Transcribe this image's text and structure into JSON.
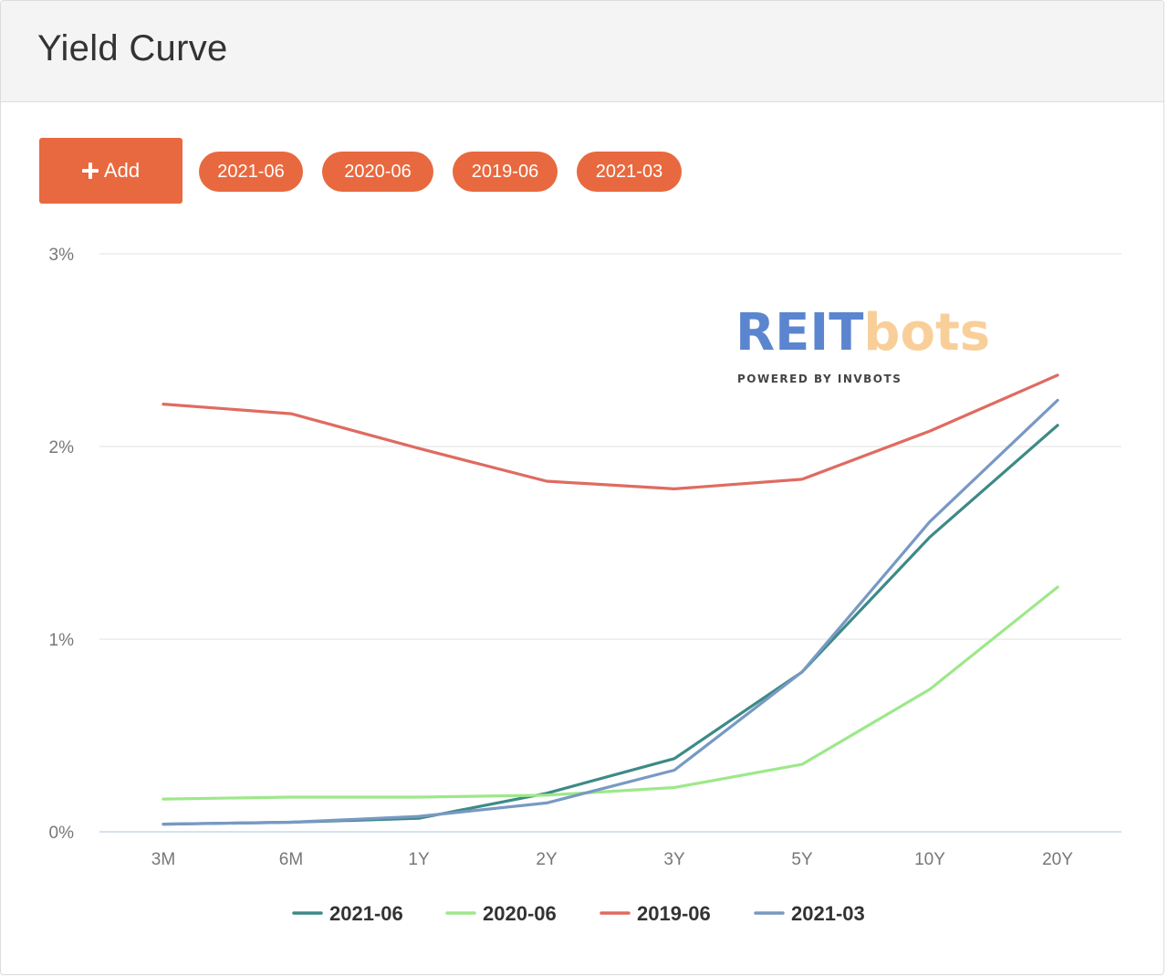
{
  "header": {
    "title": "Yield Curve"
  },
  "toolbar": {
    "add_label": "Add",
    "tags": [
      "2021-06",
      "2020-06",
      "2019-06",
      "2021-03"
    ]
  },
  "watermark": {
    "brand_main": "REIT",
    "brand_accent": "bots",
    "tagline": "POWERED BY INVBOTS"
  },
  "colors": {
    "accent": "#e8693f",
    "grid": "#e2e2e2",
    "axis": "#ccd6eb"
  },
  "chart_data": {
    "type": "line",
    "title": "",
    "xlabel": "",
    "ylabel": "",
    "categories": [
      "3M",
      "6M",
      "1Y",
      "2Y",
      "3Y",
      "5Y",
      "10Y",
      "20Y"
    ],
    "yticks": [
      0,
      1,
      2,
      3
    ],
    "ytick_labels": [
      "0%",
      "1%",
      "2%",
      "3%"
    ],
    "ylim": [
      0,
      3
    ],
    "grid": true,
    "legend_position": "bottom",
    "series": [
      {
        "name": "2021-06",
        "color": "#3d8a87",
        "values": [
          0.04,
          0.05,
          0.07,
          0.2,
          0.38,
          0.83,
          1.53,
          2.11
        ]
      },
      {
        "name": "2020-06",
        "color": "#9de88a",
        "values": [
          0.17,
          0.18,
          0.18,
          0.19,
          0.23,
          0.35,
          0.74,
          1.27
        ]
      },
      {
        "name": "2019-06",
        "color": "#df6b61",
        "values": [
          2.22,
          2.17,
          1.99,
          1.82,
          1.78,
          1.83,
          2.08,
          2.37
        ]
      },
      {
        "name": "2021-03",
        "color": "#7899c3",
        "values": [
          0.04,
          0.05,
          0.08,
          0.15,
          0.32,
          0.83,
          1.61,
          2.24
        ]
      }
    ]
  }
}
